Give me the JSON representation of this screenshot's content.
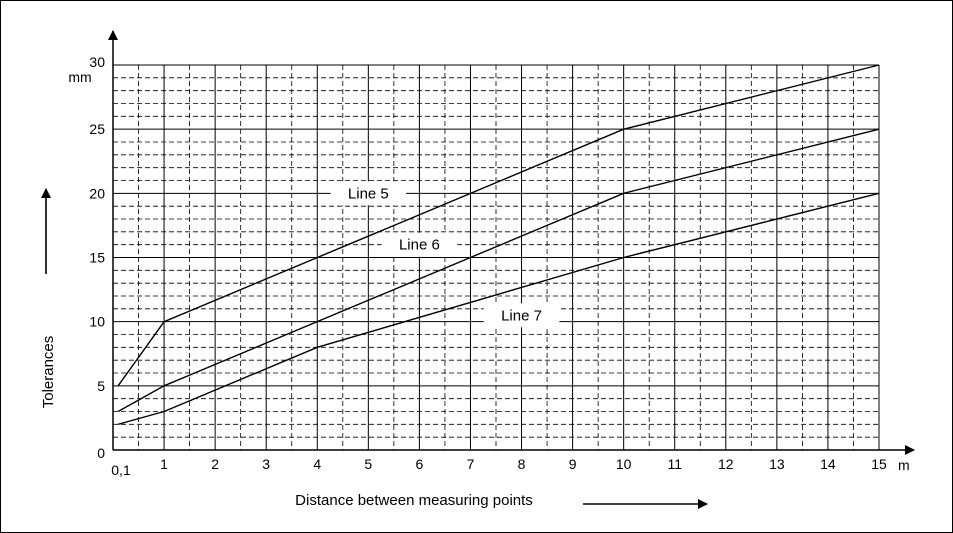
{
  "chart_data": {
    "type": "line",
    "title": "",
    "xlabel": "Distance between measuring points",
    "ylabel": "Tolerances",
    "x_unit": "m",
    "y_unit": "mm",
    "xlim": [
      0,
      15
    ],
    "ylim": [
      0,
      30
    ],
    "x_ticks": [
      {
        "value": 0.1,
        "label": "0,1"
      },
      {
        "value": 1,
        "label": "1"
      },
      {
        "value": 2,
        "label": "2"
      },
      {
        "value": 3,
        "label": "3"
      },
      {
        "value": 4,
        "label": "4"
      },
      {
        "value": 5,
        "label": "5"
      },
      {
        "value": 6,
        "label": "6"
      },
      {
        "value": 7,
        "label": "7"
      },
      {
        "value": 8,
        "label": "8"
      },
      {
        "value": 9,
        "label": "9"
      },
      {
        "value": 10,
        "label": "10"
      },
      {
        "value": 11,
        "label": "11"
      },
      {
        "value": 12,
        "label": "12"
      },
      {
        "value": 13,
        "label": "13"
      },
      {
        "value": 14,
        "label": "14"
      },
      {
        "value": 15,
        "label": "15"
      }
    ],
    "y_ticks": [
      {
        "value": 0,
        "label": "0"
      },
      {
        "value": 5,
        "label": "5"
      },
      {
        "value": 10,
        "label": "10"
      },
      {
        "value": 15,
        "label": "15"
      },
      {
        "value": 20,
        "label": "20"
      },
      {
        "value": 25,
        "label": "25"
      },
      {
        "value": 30,
        "label": "30"
      }
    ],
    "grid": true,
    "series": [
      {
        "name": "Line 5",
        "x": [
          0.1,
          1,
          10,
          15
        ],
        "y": [
          5,
          10,
          25,
          30
        ]
      },
      {
        "name": "Line 6",
        "x": [
          0.1,
          1,
          10,
          15
        ],
        "y": [
          3,
          5,
          20,
          25
        ]
      },
      {
        "name": "Line 7",
        "x": [
          0.1,
          1,
          4,
          10,
          15
        ],
        "y": [
          2,
          3,
          8,
          15,
          20
        ]
      }
    ]
  }
}
